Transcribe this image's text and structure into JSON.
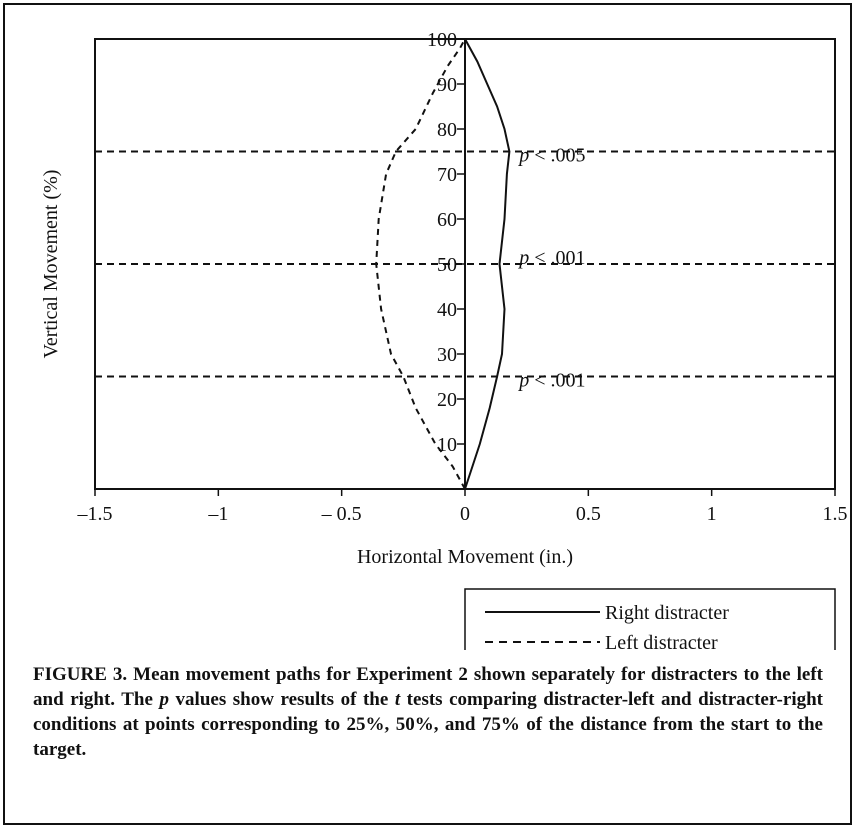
{
  "chart_data": {
    "type": "line",
    "xlabel": "Horizontal Movement (in.)",
    "ylabel": "Vertical Movement (%)",
    "xlim": [
      -1.5,
      1.5
    ],
    "ylim": [
      0,
      100
    ],
    "x_ticks": [
      "–1.5",
      "–1",
      "– 0.5",
      "0",
      "0.5",
      "1",
      "1.5"
    ],
    "y_ticks": [
      "10",
      "20",
      "30",
      "40",
      "50",
      "60",
      "70",
      "80",
      "90",
      "100"
    ],
    "series": [
      {
        "name": "Right distracter",
        "style": "solid",
        "points": [
          [
            0,
            0
          ],
          [
            0.03,
            5
          ],
          [
            0.06,
            10
          ],
          [
            0.1,
            18
          ],
          [
            0.13,
            25
          ],
          [
            0.15,
            30
          ],
          [
            0.16,
            40
          ],
          [
            0.14,
            50
          ],
          [
            0.16,
            60
          ],
          [
            0.17,
            70
          ],
          [
            0.18,
            75
          ],
          [
            0.16,
            80
          ],
          [
            0.13,
            85
          ],
          [
            0.09,
            90
          ],
          [
            0.05,
            95
          ],
          [
            0,
            100
          ]
        ]
      },
      {
        "name": "Left distracter",
        "style": "dashed",
        "points": [
          [
            0,
            0
          ],
          [
            -0.05,
            5
          ],
          [
            -0.12,
            10
          ],
          [
            -0.2,
            18
          ],
          [
            -0.25,
            25
          ],
          [
            -0.3,
            30
          ],
          [
            -0.34,
            40
          ],
          [
            -0.36,
            50
          ],
          [
            -0.35,
            60
          ],
          [
            -0.32,
            70
          ],
          [
            -0.28,
            75
          ],
          [
            -0.2,
            80
          ],
          [
            -0.13,
            88
          ],
          [
            -0.07,
            94
          ],
          [
            -0.02,
            98
          ],
          [
            0,
            100
          ]
        ]
      }
    ],
    "reference_lines": [
      25,
      50,
      75
    ],
    "annotations": [
      {
        "y": 75,
        "label": "p < .005"
      },
      {
        "y": 50,
        "label": "p < .001"
      },
      {
        "y": 25,
        "label": "p < .001"
      }
    ],
    "legend_position": "bottom-right"
  },
  "caption": {
    "bold_lead": "FIGURE 3. Mean movement paths for Experiment 2 shown separately for distracters to the left and right. The ",
    "p_var": "p",
    "mid1": " values show results of the ",
    "t_var": "t",
    "rest": " tests comparing distracter-left and distracter-right conditions at points corresponding to 25%, 50%, and 75% of the distance from the start to the target."
  }
}
